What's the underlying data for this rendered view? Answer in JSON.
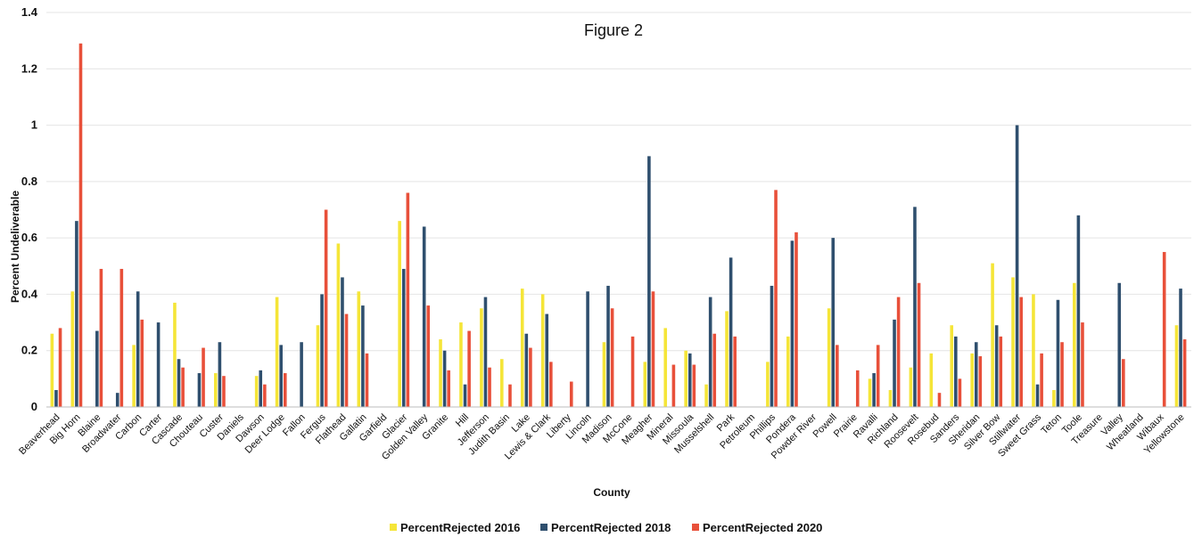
{
  "chart_data": {
    "type": "bar",
    "title": "Figure 2",
    "xlabel": "County",
    "ylabel": "Percent Undeliverable",
    "ylim": [
      0,
      1.4
    ],
    "yticks": [
      "0",
      "0.2",
      "0.4",
      "0.6",
      "0.8",
      "1",
      "1.2",
      "1.4"
    ],
    "grid": true,
    "legend_position": "bottom",
    "categories": [
      "Beaverhead",
      "Big Horn",
      "Blaine",
      "Broadwater",
      "Carbon",
      "Carter",
      "Cascade",
      "Chouteau",
      "Custer",
      "Daniels",
      "Dawson",
      "Deer Lodge",
      "Fallon",
      "Fergus",
      "Flathead",
      "Gallatin",
      "Garfield",
      "Glacier",
      "Golden Valley",
      "Granite",
      "Hill",
      "Jefferson",
      "Judith Basin",
      "Lake",
      "Lewis & Clark",
      "Liberty",
      "Lincoln",
      "Madison",
      "McCone",
      "Meagher",
      "Mineral",
      "Missoula",
      "Musselshell",
      "Park",
      "Petroleum",
      "Phillips",
      "Pondera",
      "Powder River",
      "Powell",
      "Prairie",
      "Ravalli",
      "Richland",
      "Roosevelt",
      "Rosebud",
      "Sanders",
      "Sheridan",
      "Silver Bow",
      "Stillwater",
      "Sweet Grass",
      "Teton",
      "Toole",
      "Treasure",
      "Valley",
      "Wheatland",
      "Wibaux",
      "Yellowstone"
    ],
    "series": [
      {
        "name": "PercentRejected 2016",
        "color": "#f5e538",
        "values": [
          0.26,
          0.41,
          0,
          0,
          0.22,
          0,
          0.37,
          0,
          0.12,
          0,
          0.11,
          0.39,
          0,
          0.29,
          0.58,
          0.41,
          0,
          0.66,
          0,
          0.24,
          0.3,
          0.35,
          0.17,
          0.42,
          0.4,
          0,
          0,
          0.23,
          0,
          0.16,
          0.28,
          0.2,
          0.08,
          0.34,
          0,
          0.16,
          0.25,
          0,
          0.35,
          0,
          0.1,
          0.06,
          0.14,
          0.19,
          0.29,
          0.19,
          0.51,
          0.46,
          0.4,
          0.06,
          0.44,
          0,
          0,
          0,
          0,
          0.29
        ]
      },
      {
        "name": "PercentRejected 2018",
        "color": "#2f4f6e",
        "values": [
          0.06,
          0.66,
          0.27,
          0.05,
          0.41,
          0.3,
          0.17,
          0.12,
          0.23,
          0,
          0.13,
          0.22,
          0.23,
          0.4,
          0.46,
          0.36,
          0,
          0.49,
          0.64,
          0.2,
          0.08,
          0.39,
          0,
          0.26,
          0.33,
          0,
          0.41,
          0.43,
          0,
          0.89,
          0,
          0.19,
          0.39,
          0.53,
          0,
          0.43,
          0.59,
          0,
          0.6,
          0,
          0.12,
          0.31,
          0.71,
          0,
          0.25,
          0.23,
          0.29,
          1.0,
          0.08,
          0.38,
          0.68,
          0,
          0.44,
          0,
          0,
          0.42
        ]
      },
      {
        "name": "PercentRejected 2020",
        "color": "#e8503a",
        "values": [
          0.28,
          1.29,
          0.49,
          0.49,
          0.31,
          0,
          0.14,
          0.21,
          0.11,
          0,
          0.08,
          0.12,
          0,
          0.7,
          0.33,
          0.19,
          0,
          0.76,
          0.36,
          0.13,
          0.27,
          0.14,
          0.08,
          0.21,
          0.16,
          0.09,
          0,
          0.35,
          0.25,
          0.41,
          0.15,
          0.15,
          0.26,
          0.25,
          0,
          0.77,
          0.62,
          0,
          0.22,
          0.13,
          0.22,
          0.39,
          0.44,
          0.05,
          0.1,
          0.18,
          0.25,
          0.39,
          0.19,
          0.23,
          0.3,
          0,
          0.17,
          0,
          0.55,
          0.24
        ]
      }
    ]
  }
}
